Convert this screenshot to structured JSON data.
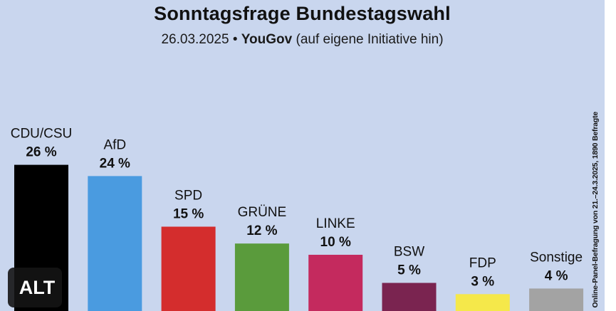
{
  "title": "Sonntagsfrage Bundestagswahl",
  "subtitle": {
    "date": "26.03.2025",
    "separator": "•",
    "pollster": "YouGov",
    "note": "(auf eigene Initiative hin)"
  },
  "footnote": "Online-Panel-Befragung von 21.–24.3.2025, 1890 Befragte",
  "alt_badge": "ALT",
  "chart_data": {
    "type": "bar",
    "title": "Sonntagsfrage Bundestagswahl",
    "xlabel": "",
    "ylabel": "",
    "ylim": [
      0,
      30
    ],
    "grid": false,
    "unit": "%",
    "categories": [
      "CDU/CSU",
      "AfD",
      "SPD",
      "GRÜNE",
      "LINKE",
      "BSW",
      "FDP",
      "Sonstige"
    ],
    "values": [
      26,
      24,
      15,
      12,
      10,
      5,
      3,
      4
    ],
    "value_labels": [
      "26 %",
      "24 %",
      "15 %",
      "12 %",
      "10 %",
      "5 %",
      "3 %",
      "4 %"
    ],
    "colors": [
      "#000000",
      "#4a9be0",
      "#d42d2d",
      "#5a9b3c",
      "#c42a5e",
      "#7a2450",
      "#f5e84a",
      "#a3a3a3"
    ]
  }
}
